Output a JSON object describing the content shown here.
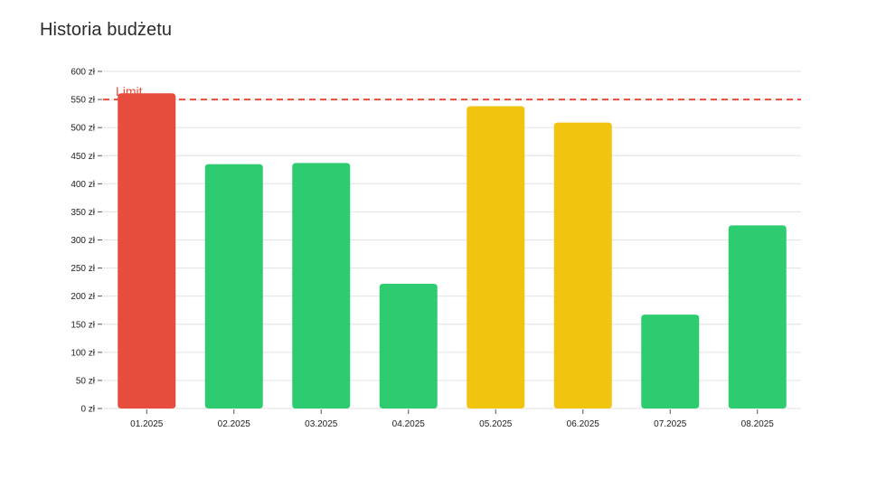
{
  "title": "Historia budżetu",
  "chart_data": {
    "type": "bar",
    "title": "Historia budżetu",
    "xlabel": "",
    "ylabel": "",
    "categories": [
      "01.2025",
      "02.2025",
      "03.2025",
      "04.2025",
      "05.2025",
      "06.2025",
      "07.2025",
      "08.2025"
    ],
    "values": [
      561,
      435,
      437,
      222,
      538,
      509,
      167,
      326
    ],
    "bar_colors": [
      "#e84c3d",
      "#2ecc71",
      "#2ecc71",
      "#2ecc71",
      "#f1c40f",
      "#f1c40f",
      "#2ecc71",
      "#2ecc71"
    ],
    "ylim": [
      0,
      600
    ],
    "y_step": 50,
    "y_unit_suffix": " zł",
    "grid": true,
    "legend": "none",
    "threshold": {
      "label": "Limit",
      "value": 550,
      "color": "#e84c3d",
      "style": "dashed"
    }
  }
}
